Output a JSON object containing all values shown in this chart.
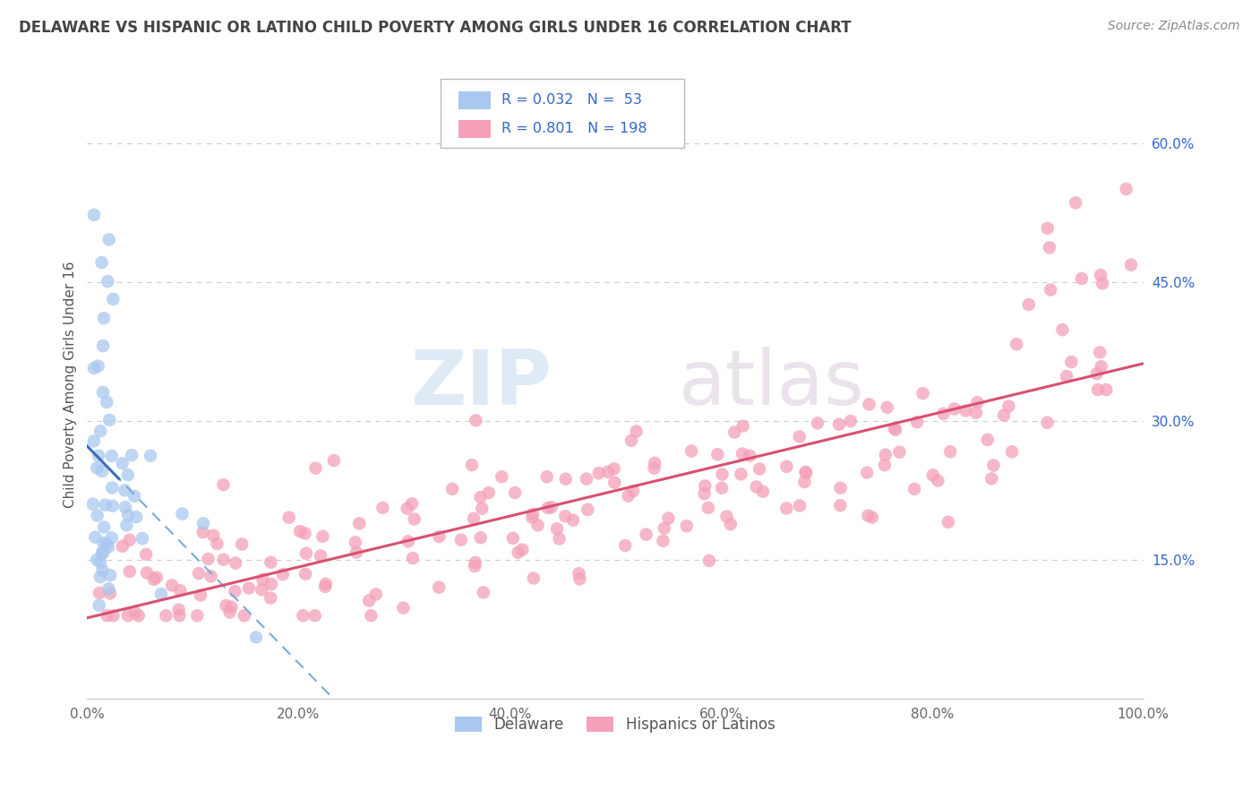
{
  "title": "DELAWARE VS HISPANIC OR LATINO CHILD POVERTY AMONG GIRLS UNDER 16 CORRELATION CHART",
  "source": "Source: ZipAtlas.com",
  "ylabel": "Child Poverty Among Girls Under 16",
  "xlim": [
    0.0,
    1.0
  ],
  "ylim": [
    0.0,
    0.68
  ],
  "xtick_vals": [
    0.0,
    0.2,
    0.4,
    0.6,
    0.8,
    1.0
  ],
  "xtick_labels": [
    "0.0%",
    "20.0%",
    "40.0%",
    "60.0%",
    "80.0%",
    "100.0%"
  ],
  "ytick_positions_right": [
    0.15,
    0.3,
    0.45,
    0.6
  ],
  "ytick_labels_right": [
    "15.0%",
    "30.0%",
    "45.0%",
    "60.0%"
  ],
  "legend_entries": [
    {
      "R": 0.032,
      "N": 53,
      "color": "#a8c8f0"
    },
    {
      "R": 0.801,
      "N": 198,
      "color": "#f4a0b0"
    }
  ],
  "delaware_color": "#a8c8f0",
  "hispanic_color": "#f4a0b8",
  "delaware_line_color": "#3a6fba",
  "delaware_dash_color": "#7aaad8",
  "hispanic_line_color": "#d85070",
  "background_color": "#ffffff",
  "grid_color": "#cccccc",
  "title_color": "#444444",
  "source_color": "#888888",
  "label_color": "#3366cc",
  "tick_color": "#666666",
  "watermark_zip_color": "#c8ddf0",
  "watermark_atlas_color": "#d8c8d8"
}
